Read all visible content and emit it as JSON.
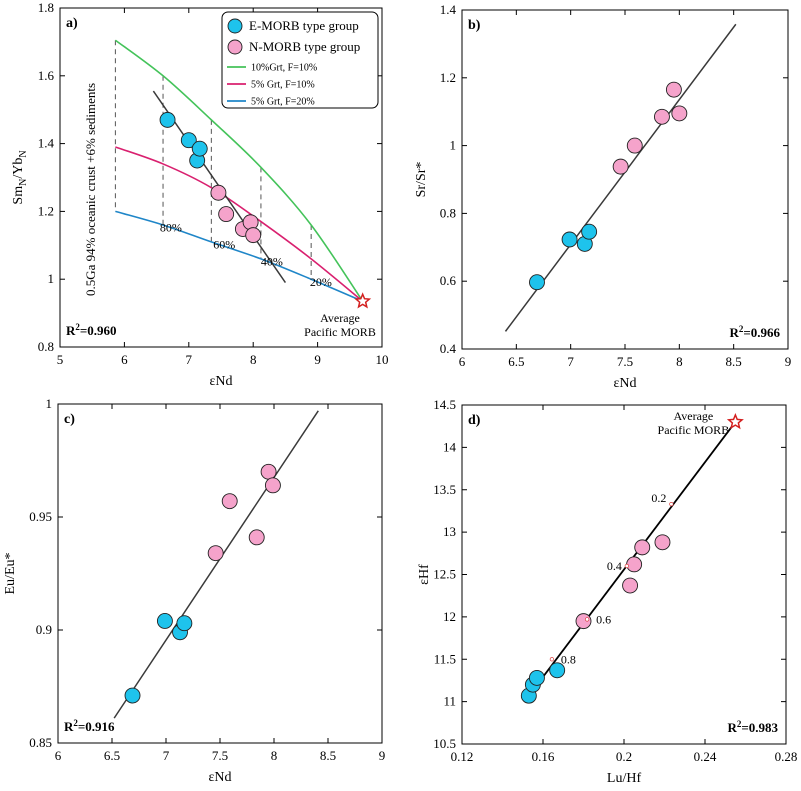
{
  "colors": {
    "emorb": "#1ec3ec",
    "nmorb": "#f5a3cb",
    "curve_10grt_f10": "#44c35a",
    "curve_5grt_f10": "#d9206f",
    "curve_5grt_f20": "#1f86c8",
    "star": "#d42020",
    "regression": "#3a3a3a"
  },
  "chart_data": [
    {
      "type": "scatter",
      "panel": "a)",
      "xlabel": "εNd",
      "ylabel_main": "Sm",
      "ylabel_sub1": "N",
      "ylabel_mid": "/Yb",
      "ylabel_sub2": "N",
      "xlim": [
        5,
        10
      ],
      "ylim": [
        0.8,
        1.8
      ],
      "xticks": [
        5,
        6,
        7,
        8,
        9,
        10
      ],
      "yticks": [
        0.8,
        1,
        1.2,
        1.4,
        1.6,
        1.8
      ],
      "xtick_labels": [
        "5",
        "6",
        "7",
        "8",
        "9",
        "10"
      ],
      "ytick_labels": [
        "0.8",
        "1",
        "1.2",
        "1.4",
        "1.6",
        "1.8"
      ],
      "legend_placement": "top-right",
      "legend": {
        "emorb": "E-MORB type group",
        "nmorb": "N-MORB type group",
        "curve1": "10%Grt, F=10%",
        "curve2": "5% Grt, F=10%",
        "curve3": "5% Grt, F=20%"
      },
      "series": [
        {
          "name": "E-MORB type group",
          "x": [
            6.67,
            7.0,
            7.13,
            7.17
          ],
          "y": [
            1.47,
            1.41,
            1.35,
            1.385
          ]
        },
        {
          "name": "N-MORB type group",
          "x": [
            7.46,
            7.58,
            7.84,
            7.96,
            8.0
          ],
          "y": [
            1.255,
            1.192,
            1.148,
            1.168,
            1.13
          ]
        }
      ],
      "curves": [
        {
          "name": "10%Grt, F=10%",
          "x": [
            5.86,
            6.6,
            7.35,
            8.12,
            8.9,
            9.7
          ],
          "y": [
            1.705,
            1.6,
            1.47,
            1.33,
            1.16,
            0.935
          ]
        },
        {
          "name": "5% Grt, F=10%",
          "x": [
            5.86,
            6.6,
            7.35,
            8.12,
            8.9,
            9.7
          ],
          "y": [
            1.39,
            1.34,
            1.27,
            1.17,
            1.06,
            0.935
          ]
        },
        {
          "name": "5% Grt, F=20%",
          "x": [
            5.86,
            6.6,
            7.35,
            8.12,
            8.9,
            9.7
          ],
          "y": [
            1.2,
            1.16,
            1.11,
            1.06,
            1.0,
            0.935
          ]
        }
      ],
      "regression": {
        "x": [
          6.45,
          8.5
        ],
        "y": [
          1.555,
          0.99
        ]
      },
      "mixing_ticks": [
        {
          "x": 5.86,
          "y_top": 1.705,
          "y_bottom": 1.2
        },
        {
          "x": 6.6,
          "y_top": 1.6,
          "y_bottom": 1.16
        },
        {
          "x": 7.35,
          "y_top": 1.47,
          "y_bottom": 1.11
        },
        {
          "x": 8.12,
          "y_top": 1.33,
          "y_bottom": 1.06
        },
        {
          "x": 8.9,
          "y_top": 1.16,
          "y_bottom": 1.0
        }
      ],
      "mixing_labels": [
        {
          "text": "80%",
          "x": 6.55,
          "y": 1.14
        },
        {
          "text": "60%",
          "x": 7.38,
          "y": 1.09
        },
        {
          "text": "40%",
          "x": 8.12,
          "y": 1.04
        },
        {
          "text": "20%",
          "x": 8.88,
          "y": 0.98
        }
      ],
      "vertical_annotation": "0.5Ga 94% oceanic crust +6% sediments",
      "star": {
        "x": 9.7,
        "y": 0.935
      },
      "star_label": [
        "Average",
        "Pacific MORB"
      ],
      "r2": "R²=0.960"
    },
    {
      "type": "scatter",
      "panel": "b)",
      "xlabel": "εNd",
      "ylabel": "Sr/Sr*",
      "xlim": [
        6,
        9
      ],
      "ylim": [
        0.4,
        1.4
      ],
      "xticks": [
        6,
        6.5,
        7,
        7.5,
        8,
        8.5,
        9
      ],
      "yticks": [
        0.4,
        0.6,
        0.8,
        1,
        1.2,
        1.4
      ],
      "xtick_labels": [
        "6",
        "6.5",
        "7",
        "7.5",
        "8",
        "8.5",
        "9"
      ],
      "ytick_labels": [
        "0.4",
        "0.6",
        "0.8",
        "1",
        "1.2",
        "1.4"
      ],
      "series": [
        {
          "name": "E-MORB type group",
          "x": [
            6.69,
            6.99,
            7.13,
            7.17
          ],
          "y": [
            0.597,
            0.723,
            0.71,
            0.746
          ]
        },
        {
          "name": "N-MORB type group",
          "x": [
            7.46,
            7.59,
            7.84,
            7.95,
            8.0
          ],
          "y": [
            0.938,
            1.0,
            1.085,
            1.165,
            1.095
          ]
        }
      ],
      "regression": {
        "x": [
          6.4,
          8.52
        ],
        "y": [
          0.452,
          1.358
        ]
      },
      "r2": "R²=0.966"
    },
    {
      "type": "scatter",
      "panel": "c)",
      "xlabel": "εNd",
      "ylabel": "Eu/Eu*",
      "xlim": [
        6,
        9
      ],
      "ylim": [
        0.85,
        1.0
      ],
      "xticks": [
        6,
        6.5,
        7,
        7.5,
        8,
        8.5,
        9
      ],
      "yticks": [
        0.85,
        0.9,
        0.95,
        1.0
      ],
      "xtick_labels": [
        "6",
        "6.5",
        "7",
        "7.5",
        "8",
        "8.5",
        "9"
      ],
      "ytick_labels": [
        "0.85",
        "0.9",
        "0.95",
        "1"
      ],
      "series": [
        {
          "name": "E-MORB type group",
          "x": [
            6.69,
            6.99,
            7.13,
            7.17
          ],
          "y": [
            0.871,
            0.904,
            0.899,
            0.903
          ]
        },
        {
          "name": "N-MORB type group",
          "x": [
            7.46,
            7.59,
            7.84,
            7.95,
            7.99
          ],
          "y": [
            0.934,
            0.957,
            0.941,
            0.97,
            0.964
          ]
        }
      ],
      "regression": {
        "x": [
          6.52,
          8.41
        ],
        "y": [
          0.861,
          0.997
        ]
      },
      "r2": "R²=0.916"
    },
    {
      "type": "scatter",
      "panel": "d)",
      "xlabel": "Lu/Hf",
      "ylabel": "εHf",
      "xlim": [
        0.12,
        0.28
      ],
      "ylim": [
        10.5,
        14.5
      ],
      "xticks": [
        0.12,
        0.16,
        0.2,
        0.24,
        0.28
      ],
      "yticks": [
        10.5,
        11,
        11.5,
        12,
        12.5,
        13,
        13.5,
        14,
        14.5
      ],
      "xtick_labels": [
        "0.12",
        "0.16",
        "0.2",
        "0.24",
        "0.28"
      ],
      "ytick_labels": [
        "10.5",
        "11",
        "11.5",
        "12",
        "12.5",
        "13",
        "13.5",
        "14",
        "14.5"
      ],
      "series": [
        {
          "name": "E-MORB type group",
          "x": [
            0.153,
            0.155,
            0.157,
            0.167
          ],
          "y": [
            11.07,
            11.2,
            11.28,
            11.37
          ]
        },
        {
          "name": "N-MORB type group",
          "x": [
            0.18,
            0.203,
            0.205,
            0.209,
            0.219
          ],
          "y": [
            11.95,
            12.37,
            12.62,
            12.82,
            12.88
          ]
        }
      ],
      "mixing_line": {
        "x": [
          0.153,
          0.255
        ],
        "y": [
          11.07,
          14.3
        ]
      },
      "mixing_marks": [
        {
          "text": "0.2",
          "x": 0.2234,
          "y": 13.33
        },
        {
          "text": "0.4",
          "x": 0.2014,
          "y": 12.6
        },
        {
          "text": "0.6",
          "x": 0.1818,
          "y": 11.97
        },
        {
          "text": "0.8",
          "x": 0.1644,
          "y": 11.5
        }
      ],
      "star": {
        "x": 0.255,
        "y": 14.3
      },
      "star_label": [
        "Average",
        "Pacific MORB"
      ],
      "r2": "R²=0.983"
    }
  ]
}
